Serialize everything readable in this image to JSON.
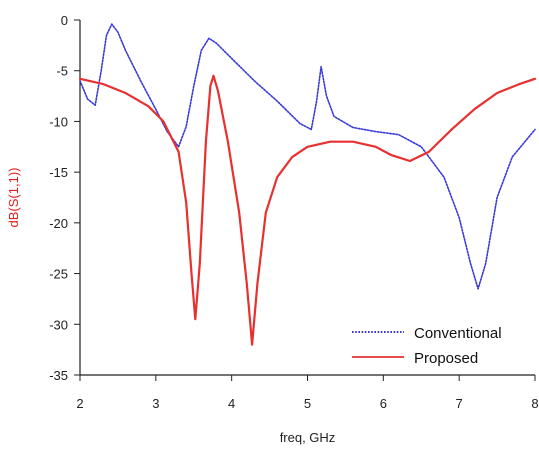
{
  "colors": {
    "conventional": "#3a3ad8",
    "proposed": "#e83030",
    "ylabel": "#e02020",
    "axis": "#222222"
  },
  "chart_data": {
    "type": "line",
    "title": "",
    "xlabel": "freq, GHz",
    "ylabel": "dB(S(1,1))",
    "xlim": [
      2,
      8
    ],
    "ylim": [
      -35,
      0
    ],
    "x_ticks": [
      2,
      3,
      4,
      5,
      6,
      7,
      8
    ],
    "y_ticks": [
      0,
      -5,
      -10,
      -15,
      -20,
      -25,
      -30,
      -35
    ],
    "grid": false,
    "legend_position": "bottom-right",
    "series": [
      {
        "name": "Conventional",
        "line_style": "dotted",
        "points": [
          [
            2.0,
            -6.0
          ],
          [
            2.1,
            -7.8
          ],
          [
            2.2,
            -8.4
          ],
          [
            2.28,
            -5.0
          ],
          [
            2.35,
            -1.5
          ],
          [
            2.42,
            -0.4
          ],
          [
            2.5,
            -1.2
          ],
          [
            2.6,
            -3.0
          ],
          [
            2.8,
            -6.0
          ],
          [
            3.0,
            -8.8
          ],
          [
            3.15,
            -11.0
          ],
          [
            3.3,
            -12.5
          ],
          [
            3.4,
            -10.5
          ],
          [
            3.5,
            -6.5
          ],
          [
            3.6,
            -3.0
          ],
          [
            3.7,
            -1.8
          ],
          [
            3.8,
            -2.3
          ],
          [
            4.0,
            -3.8
          ],
          [
            4.3,
            -6.0
          ],
          [
            4.6,
            -8.0
          ],
          [
            4.9,
            -10.2
          ],
          [
            5.05,
            -10.8
          ],
          [
            5.12,
            -8.0
          ],
          [
            5.18,
            -4.6
          ],
          [
            5.25,
            -7.5
          ],
          [
            5.35,
            -9.5
          ],
          [
            5.6,
            -10.6
          ],
          [
            5.9,
            -11.0
          ],
          [
            6.2,
            -11.3
          ],
          [
            6.5,
            -12.5
          ],
          [
            6.8,
            -15.5
          ],
          [
            7.0,
            -19.5
          ],
          [
            7.15,
            -24.0
          ],
          [
            7.25,
            -26.5
          ],
          [
            7.35,
            -24.0
          ],
          [
            7.5,
            -17.5
          ],
          [
            7.7,
            -13.5
          ],
          [
            8.0,
            -10.8
          ]
        ]
      },
      {
        "name": "Proposed",
        "line_style": "solid",
        "points": [
          [
            2.0,
            -5.8
          ],
          [
            2.3,
            -6.3
          ],
          [
            2.6,
            -7.2
          ],
          [
            2.9,
            -8.5
          ],
          [
            3.1,
            -10.0
          ],
          [
            3.3,
            -13.0
          ],
          [
            3.4,
            -18.0
          ],
          [
            3.47,
            -25.0
          ],
          [
            3.52,
            -29.5
          ],
          [
            3.58,
            -24.0
          ],
          [
            3.66,
            -12.0
          ],
          [
            3.72,
            -6.5
          ],
          [
            3.76,
            -5.5
          ],
          [
            3.82,
            -7.0
          ],
          [
            3.95,
            -12.0
          ],
          [
            4.1,
            -19.0
          ],
          [
            4.2,
            -26.0
          ],
          [
            4.27,
            -32.0
          ],
          [
            4.34,
            -26.0
          ],
          [
            4.45,
            -19.0
          ],
          [
            4.6,
            -15.5
          ],
          [
            4.8,
            -13.5
          ],
          [
            5.0,
            -12.5
          ],
          [
            5.3,
            -12.0
          ],
          [
            5.6,
            -12.0
          ],
          [
            5.9,
            -12.5
          ],
          [
            6.1,
            -13.3
          ],
          [
            6.35,
            -13.9
          ],
          [
            6.6,
            -13.0
          ],
          [
            6.9,
            -10.8
          ],
          [
            7.2,
            -8.8
          ],
          [
            7.5,
            -7.2
          ],
          [
            7.8,
            -6.3
          ],
          [
            8.0,
            -5.8
          ]
        ]
      }
    ]
  }
}
